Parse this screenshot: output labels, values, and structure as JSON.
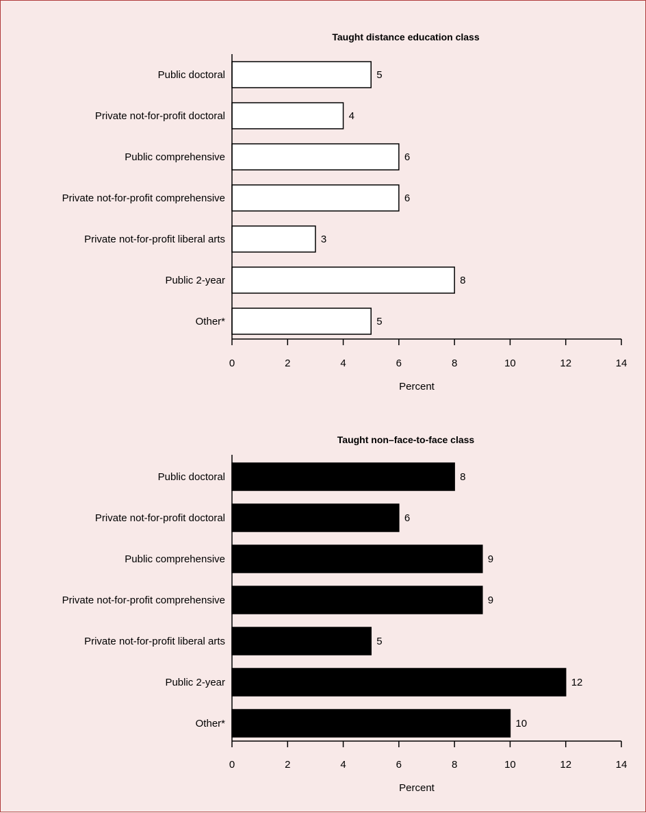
{
  "chart_data": [
    {
      "type": "bar",
      "orientation": "horizontal",
      "title": "Taught distance education class",
      "xlabel": "Percent",
      "ylabel": "",
      "xlim": [
        0,
        14
      ],
      "xticks": [
        0,
        2,
        4,
        6,
        8,
        10,
        12,
        14
      ],
      "categories": [
        "Public doctoral",
        "Private not-for-profit doctoral",
        "Public comprehensive",
        "Private not-for-profit comprehensive",
        "Private not-for-profit liberal arts",
        "Public 2-year",
        "Other*"
      ],
      "values": [
        5,
        4,
        6,
        6,
        3,
        8,
        5
      ],
      "data_labels": [
        "5",
        "4",
        "6",
        "6",
        "3",
        "8",
        "5"
      ],
      "bar_fill": "#ffffff",
      "bar_stroke": "#000000",
      "grid": false
    },
    {
      "type": "bar",
      "orientation": "horizontal",
      "title": "Taught non–face-to-face class",
      "xlabel": "Percent",
      "ylabel": "",
      "xlim": [
        0,
        14
      ],
      "xticks": [
        0,
        2,
        4,
        6,
        8,
        10,
        12,
        14
      ],
      "categories": [
        "Public doctoral",
        "Private not-for-profit doctoral",
        "Public comprehensive",
        "Private not-for-profit comprehensive",
        "Private not-for-profit liberal arts",
        "Public 2-year",
        "Other*"
      ],
      "values": [
        8,
        6,
        9,
        9,
        5,
        12,
        10
      ],
      "data_labels": [
        "8",
        "6",
        "9",
        "9",
        "5",
        "12",
        "10"
      ],
      "bar_fill": "#000000",
      "bar_stroke": "#000000",
      "grid": false
    }
  ],
  "colors": {
    "background": "#f8e9e8",
    "border": "#b03a3a",
    "text": "#000000"
  }
}
